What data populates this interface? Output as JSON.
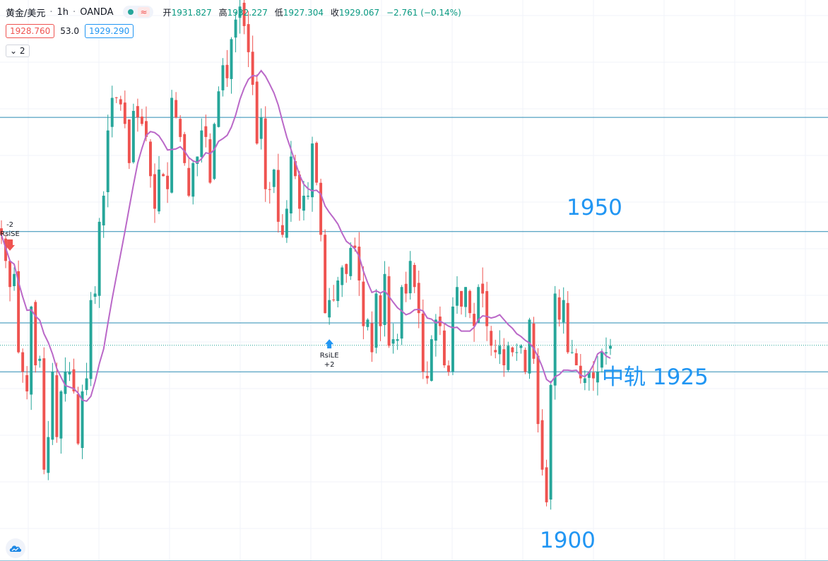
{
  "header": {
    "symbol": "黄金/美元",
    "interval": "1h",
    "exchange": "OANDA",
    "indicator_glyph": "≈",
    "ohlc": {
      "open_label": "开",
      "open": "1931.827",
      "high_label": "高",
      "high": "1932.227",
      "low_label": "低",
      "low": "1927.304",
      "close_label": "收",
      "close": "1929.067",
      "change": "−2.761 (−0.14%)"
    },
    "sell_price": "1928.760",
    "spread": "53.0",
    "buy_price": "1929.290",
    "indicator_count": "2"
  },
  "colors": {
    "up": "#26a69a",
    "down": "#ef5350",
    "ma": "#ba68c8",
    "level_line": "#2a8bb3",
    "level_text": "#2196f3",
    "price_line": "#26a69a",
    "grid": "#f0f3fa"
  },
  "chart_data": {
    "type": "candlestick",
    "y_range": [
      1896,
      1982
    ],
    "grid": true,
    "horizontal_levels": [
      1964,
      1946.5,
      1932.5,
      1925,
      1896
    ],
    "current_price": 1929.07,
    "level_labels": [
      {
        "text": "1950",
        "price": 1950
      },
      {
        "text": "中轨 1925",
        "price": 1924
      },
      {
        "text": "1900",
        "price": 1899
      }
    ],
    "signals": [
      {
        "kind": "sell",
        "label": "RsiSE",
        "qty": "-2",
        "index": 2
      },
      {
        "kind": "buy",
        "label": "RsiLE",
        "qty": "+2",
        "index": 77
      }
    ],
    "series": [
      {
        "name": "price",
        "values": [
          1946,
          1942,
          1938,
          1940,
          1928,
          1925,
          1922,
          1935,
          1926,
          1927,
          1910,
          1915,
          1925,
          1915,
          1922,
          1925,
          1925,
          1922,
          1914,
          1922,
          1924,
          1936,
          1937,
          1948,
          1952,
          1962,
          1967,
          1967,
          1966,
          1963,
          1957,
          1965,
          1964,
          1963,
          1961,
          1955,
          1950,
          1956,
          1955,
          1953,
          1967,
          1964,
          1961,
          1957,
          1952,
          1957,
          1958,
          1962,
          1961,
          1954,
          1963,
          1968,
          1972,
          1970,
          1976,
          1979,
          1981,
          1978,
          1974,
          1969,
          1960,
          1964,
          1953,
          1953,
          1956,
          1948,
          1946,
          1950,
          1958,
          1955,
          1950,
          1952,
          1952,
          1960,
          1954,
          1946,
          1934,
          1936,
          1936,
          1939,
          1941,
          1940,
          1944,
          1944,
          1939,
          1932,
          1933,
          1928,
          1937,
          1932,
          1940,
          1929,
          1930,
          1930,
          1938,
          1937,
          1942,
          1938,
          1934,
          1925,
          1924,
          1930,
          1933,
          1932,
          1926,
          1925,
          1935,
          1938,
          1935,
          1938,
          1934,
          1932,
          1938,
          1937,
          1932,
          1929,
          1928,
          1929,
          1926,
          1929,
          1928,
          1928,
          1929,
          1925,
          1933,
          1927,
          1917,
          1910,
          1905,
          1923,
          1937,
          1933,
          1936,
          1928,
          1928,
          1926,
          1924,
          1924,
          1925,
          1924,
          1925,
          1928,
          1928,
          1929
        ]
      }
    ]
  }
}
